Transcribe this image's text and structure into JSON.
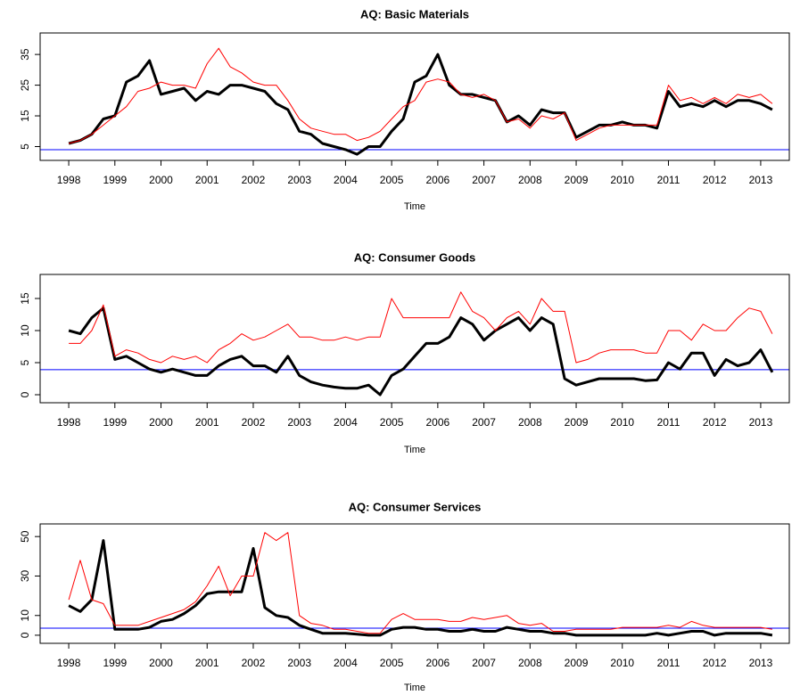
{
  "chart_data": [
    {
      "type": "line",
      "title": "AQ: Basic Materials",
      "x_label": "Time",
      "x": [
        1998,
        1998.25,
        1998.5,
        1998.75,
        1999,
        1999.25,
        1999.5,
        1999.75,
        2000,
        2000.25,
        2000.5,
        2000.75,
        2001,
        2001.25,
        2001.5,
        2001.75,
        2002,
        2002.25,
        2002.5,
        2002.75,
        2003,
        2003.25,
        2003.5,
        2003.75,
        2004,
        2004.25,
        2004.5,
        2004.75,
        2005,
        2005.25,
        2005.5,
        2005.75,
        2006,
        2006.25,
        2006.5,
        2006.75,
        2007,
        2007.25,
        2007.5,
        2007.75,
        2008,
        2008.25,
        2008.5,
        2008.75,
        2009,
        2009.25,
        2009.5,
        2009.75,
        2010,
        2010.25,
        2010.5,
        2010.75,
        2011,
        2011.25,
        2011.5,
        2011.75,
        2012,
        2012.25,
        2012.5,
        2012.75,
        2013,
        2013.25
      ],
      "series": [
        {
          "color": "#000000",
          "line_width": 3,
          "values": [
            6,
            7,
            9,
            14,
            15,
            26,
            28,
            33,
            22,
            23,
            24,
            20,
            23,
            22,
            25,
            25,
            24,
            23,
            19,
            17,
            10,
            9,
            6,
            5,
            4,
            2.5,
            5,
            5,
            10,
            14,
            26,
            28,
            35,
            25,
            22,
            22,
            21,
            20,
            13,
            15,
            12,
            17,
            16,
            16,
            8,
            10,
            12,
            12,
            13,
            12,
            12,
            11,
            23,
            18,
            19,
            18,
            20,
            18,
            20,
            20,
            19,
            17
          ]
        },
        {
          "color": "#ff0000",
          "line_width": 1,
          "values": [
            6,
            7,
            9,
            12,
            15,
            18,
            23,
            24,
            26,
            25,
            25,
            24,
            32,
            37,
            31,
            29,
            26,
            25,
            25,
            20,
            14,
            11,
            10,
            9,
            9,
            7,
            8,
            10,
            14,
            18,
            20,
            26,
            27,
            26,
            22,
            21,
            22,
            20,
            13,
            14,
            11,
            15,
            14,
            16,
            7,
            9,
            11,
            12,
            12,
            12,
            12,
            12,
            25,
            20,
            21,
            19,
            21,
            19,
            22,
            21,
            22,
            19
          ]
        }
      ],
      "hline": 4,
      "hline_color": "#0000ff",
      "xlim": [
        1997.38,
        2013.62
      ],
      "xticks": [
        1998,
        1999,
        2000,
        2001,
        2002,
        2003,
        2004,
        2005,
        2006,
        2007,
        2008,
        2009,
        2010,
        2011,
        2012,
        2013
      ],
      "ylim": [
        0.5,
        42
      ],
      "yticks": [
        5,
        15,
        25,
        35
      ]
    },
    {
      "type": "line",
      "title": "AQ: Consumer Goods",
      "x_label": "Time",
      "x": [
        1998,
        1998.25,
        1998.5,
        1998.75,
        1999,
        1999.25,
        1999.5,
        1999.75,
        2000,
        2000.25,
        2000.5,
        2000.75,
        2001,
        2001.25,
        2001.5,
        2001.75,
        2002,
        2002.25,
        2002.5,
        2002.75,
        2003,
        2003.25,
        2003.5,
        2003.75,
        2004,
        2004.25,
        2004.5,
        2004.75,
        2005,
        2005.25,
        2005.5,
        2005.75,
        2006,
        2006.25,
        2006.5,
        2006.75,
        2007,
        2007.25,
        2007.5,
        2007.75,
        2008,
        2008.25,
        2008.5,
        2008.75,
        2009,
        2009.25,
        2009.5,
        2009.75,
        2010,
        2010.25,
        2010.5,
        2010.75,
        2011,
        2011.25,
        2011.5,
        2011.75,
        2012,
        2012.25,
        2012.5,
        2012.75,
        2013,
        2013.25
      ],
      "series": [
        {
          "color": "#000000",
          "line_width": 3,
          "values": [
            10,
            9.5,
            12,
            13.5,
            5.5,
            6,
            5,
            4,
            3.5,
            4,
            3.5,
            3,
            3,
            4.5,
            5.5,
            6,
            4.5,
            4.5,
            3.5,
            6,
            3,
            2,
            1.5,
            1.2,
            1,
            1,
            1.5,
            0,
            3,
            4,
            6,
            8,
            8,
            9,
            12,
            11,
            8.5,
            10,
            11,
            12,
            10,
            12,
            11,
            2.5,
            1.5,
            2,
            2.5,
            2.5,
            2.5,
            2.5,
            2.2,
            2.3,
            5,
            4,
            6.5,
            6.5,
            3,
            5.5,
            4.5,
            5,
            7,
            3.5
          ]
        },
        {
          "color": "#ff0000",
          "line_width": 1,
          "values": [
            8,
            8,
            10,
            14,
            6,
            7,
            6.5,
            5.5,
            5,
            6,
            5.5,
            6,
            5,
            7,
            8,
            9.5,
            8.5,
            9,
            10,
            11,
            9,
            9,
            8.5,
            8.5,
            9,
            8.5,
            9,
            9,
            15,
            12,
            12,
            12,
            12,
            12,
            16,
            13,
            12,
            10,
            12,
            13,
            11,
            15,
            13,
            13,
            5,
            5.5,
            6.5,
            7,
            7,
            7,
            6.5,
            6.5,
            10,
            10,
            8.5,
            11,
            10,
            10,
            12,
            13.5,
            13,
            9.5
          ]
        }
      ],
      "hline": 3.9,
      "hline_color": "#0000ff",
      "xlim": [
        1997.38,
        2013.62
      ],
      "xticks": [
        1998,
        1999,
        2000,
        2001,
        2002,
        2003,
        2004,
        2005,
        2006,
        2007,
        2008,
        2009,
        2010,
        2011,
        2012,
        2013
      ],
      "ylim": [
        -1.25,
        18.75
      ],
      "yticks": [
        0,
        5,
        10,
        15
      ]
    },
    {
      "type": "line",
      "title": "AQ: Consumer Services",
      "x_label": "Time",
      "x": [
        1998,
        1998.25,
        1998.5,
        1998.75,
        1999,
        1999.25,
        1999.5,
        1999.75,
        2000,
        2000.25,
        2000.5,
        2000.75,
        2001,
        2001.25,
        2001.5,
        2001.75,
        2002,
        2002.25,
        2002.5,
        2002.75,
        2003,
        2003.25,
        2003.5,
        2003.75,
        2004,
        2004.25,
        2004.5,
        2004.75,
        2005,
        2005.25,
        2005.5,
        2005.75,
        2006,
        2006.25,
        2006.5,
        2006.75,
        2007,
        2007.25,
        2007.5,
        2007.75,
        2008,
        2008.25,
        2008.5,
        2008.75,
        2009,
        2009.25,
        2009.5,
        2009.75,
        2010,
        2010.25,
        2010.5,
        2010.75,
        2011,
        2011.25,
        2011.5,
        2011.75,
        2012,
        2012.25,
        2012.5,
        2012.75,
        2013,
        2013.25
      ],
      "series": [
        {
          "color": "#000000",
          "line_width": 3,
          "values": [
            15,
            12,
            18,
            48,
            3,
            3,
            3,
            4,
            7,
            8,
            11,
            15,
            21,
            22,
            22,
            22,
            44,
            14,
            10,
            9,
            5,
            3,
            1,
            1,
            1,
            0.5,
            0,
            0,
            3,
            4,
            4,
            3,
            3,
            2,
            2,
            3,
            2,
            2,
            4,
            3,
            2,
            2,
            1,
            1,
            0,
            0,
            0,
            0,
            0,
            0,
            0,
            1,
            0,
            1,
            2,
            2,
            0,
            1,
            1,
            1,
            1,
            0
          ]
        },
        {
          "color": "#ff0000",
          "line_width": 1,
          "values": [
            18,
            38,
            18,
            16,
            5,
            5,
            5,
            7,
            9,
            11,
            13,
            17,
            25,
            35,
            20,
            30,
            30,
            52,
            48,
            52,
            10,
            6,
            5,
            3,
            3,
            2,
            1,
            1,
            8,
            11,
            8,
            8,
            8,
            7,
            7,
            9,
            8,
            9,
            10,
            6,
            5,
            6,
            2,
            2,
            3,
            3,
            3,
            3,
            4,
            4,
            4,
            4,
            5,
            4,
            7,
            5,
            4,
            4,
            4,
            4,
            4,
            3
          ]
        }
      ],
      "hline": 3.6,
      "hline_color": "#0000ff",
      "xlim": [
        1997.38,
        2013.62
      ],
      "xticks": [
        1998,
        1999,
        2000,
        2001,
        2002,
        2003,
        2004,
        2005,
        2006,
        2007,
        2008,
        2009,
        2010,
        2011,
        2012,
        2013
      ],
      "ylim": [
        -4.1,
        56.4
      ],
      "yticks": [
        0,
        10,
        30,
        50
      ]
    }
  ]
}
